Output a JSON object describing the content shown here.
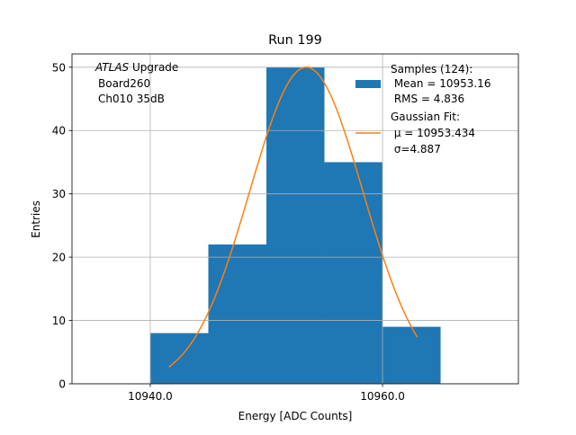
{
  "chart_data": {
    "type": "bar",
    "title": "Run 199",
    "xlabel": "Energy [ADC Counts]",
    "ylabel": "Entries",
    "xlim": [
      10933.26,
      10971.7
    ],
    "ylim": [
      0,
      52.1
    ],
    "grid": true,
    "xticks": [
      {
        "value": 10940,
        "label": "10940.0"
      },
      {
        "value": 10960,
        "label": "10960.0"
      }
    ],
    "yticks": [
      {
        "value": 0,
        "label": "0"
      },
      {
        "value": 10,
        "label": "10"
      },
      {
        "value": 20,
        "label": "20"
      },
      {
        "value": 30,
        "label": "30"
      },
      {
        "value": 40,
        "label": "40"
      },
      {
        "value": 50,
        "label": "50"
      }
    ],
    "bins": [
      {
        "left": 10940,
        "right": 10945,
        "count": 8
      },
      {
        "left": 10945,
        "right": 10950,
        "count": 22
      },
      {
        "left": 10950,
        "right": 10955,
        "count": 50
      },
      {
        "left": 10955,
        "right": 10960,
        "count": 35
      },
      {
        "left": 10960,
        "right": 10965,
        "count": 9
      }
    ],
    "fit": {
      "type": "gaussian",
      "amplitude": 50,
      "mu": 10953.434,
      "sigma": 4.887,
      "x_range": [
        10941.6,
        10963.0
      ]
    },
    "colors": {
      "bars": "#1f77b4",
      "fit": "#ff7f0e",
      "grid": "#b0b0b0"
    },
    "annotation": {
      "italic": "ATLAS",
      "rest": " Upgrade",
      "line2": "Board260",
      "line3": "Ch010 35dB"
    },
    "legend": {
      "placement": "top-right",
      "entries": [
        {
          "lines": [
            "Samples (124):",
            " Mean = 10953.16",
            " RMS = 4.836"
          ]
        },
        {
          "lines": [
            "Gaussian Fit:",
            " μ = 10953.434",
            " σ=4.887"
          ]
        }
      ]
    }
  }
}
